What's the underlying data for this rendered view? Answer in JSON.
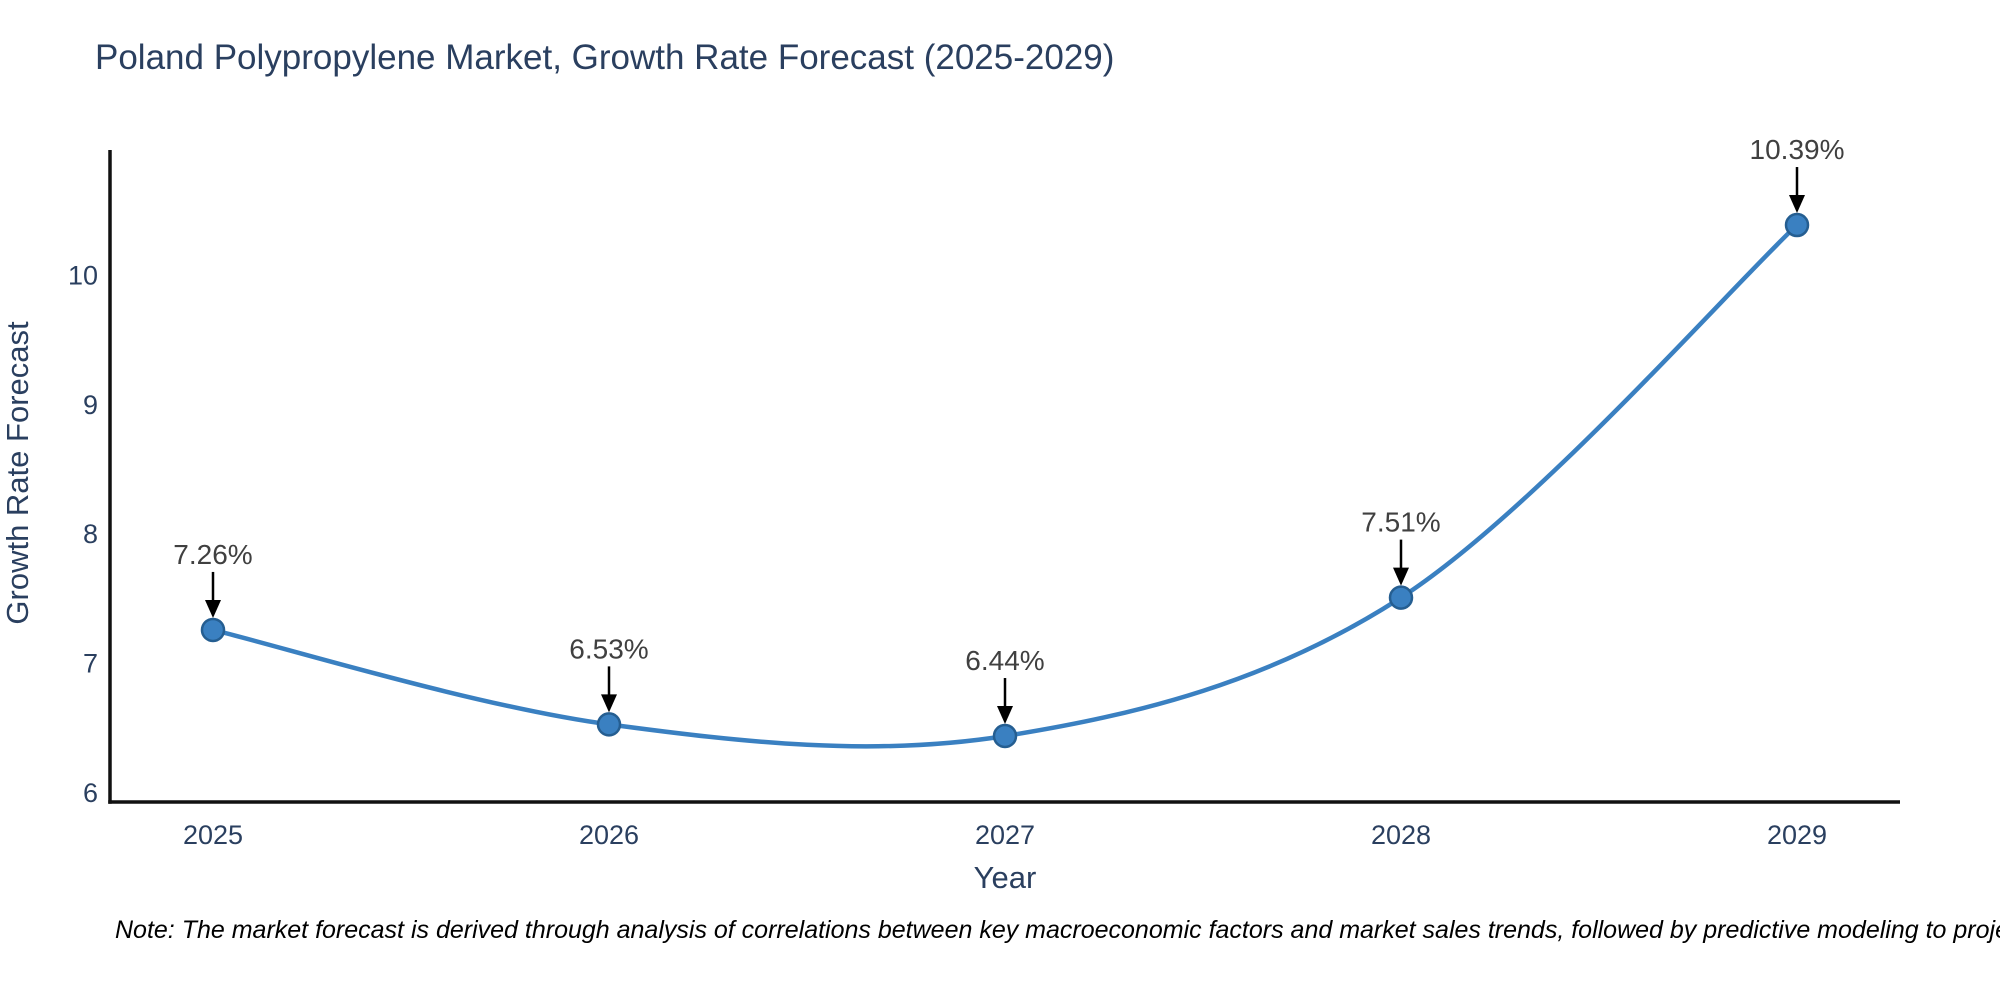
{
  "chart_data": {
    "type": "line",
    "title": "Poland Polypropylene Market, Growth Rate Forecast (2025-2029)",
    "xlabel": "Year",
    "ylabel": "Growth Rate Forecast",
    "x": [
      2025,
      2026,
      2027,
      2028,
      2029
    ],
    "series": [
      {
        "name": "Growth Rate Forecast",
        "values": [
          7.26,
          6.53,
          6.44,
          7.51,
          10.39
        ]
      }
    ],
    "point_labels": [
      "7.26%",
      "6.53%",
      "6.44%",
      "7.51%",
      "10.39%"
    ],
    "yticks": [
      6,
      7,
      8,
      9,
      10
    ],
    "ylim": [
      5.93,
      10.97
    ],
    "line_shape": "spline",
    "grid": false,
    "legend_visible": false,
    "annotation_arrows": true
  },
  "note": "Note: The market forecast is derived through analysis of correlations between key macroeconomic factors and market sales trends, followed by predictive modeling to project future sales",
  "colors": {
    "line": "#3a80c1",
    "marker_fill": "#3a80c1",
    "marker_edge": "#255e91",
    "axis_text": "#2a3f5f",
    "annotation_text": "#404040",
    "arrow": "#000000",
    "axis_line": "#111111",
    "background": "#ffffff"
  }
}
